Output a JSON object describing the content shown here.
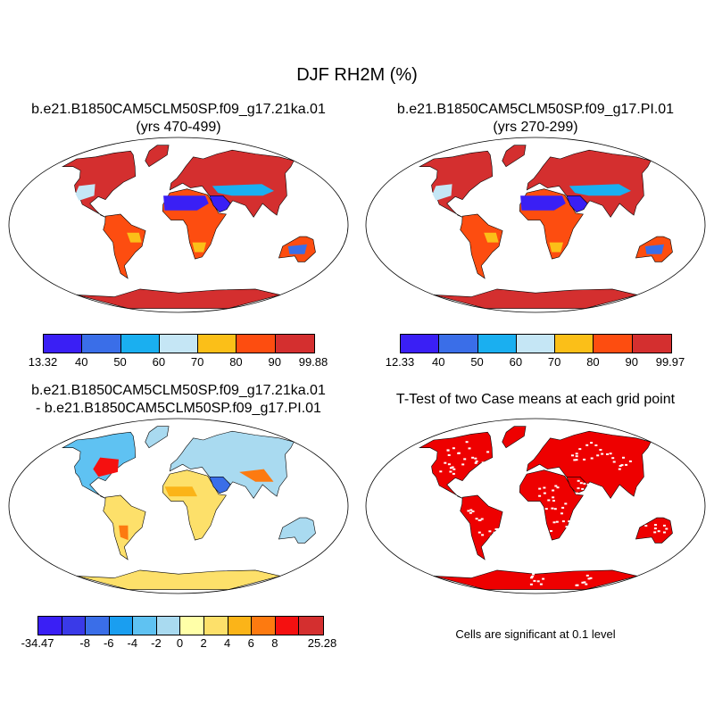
{
  "title": "DJF RH2M (%)",
  "panels": [
    {
      "title_line1": "b.e21.B1850CAM5CLM50SP.f09_g17.21ka.01",
      "title_line2": "(yrs 470-499)",
      "colorbar": {
        "colors": [
          "#3a1ff5",
          "#3a6ee8",
          "#1aaff0",
          "#c5e6f5",
          "#fbbf18",
          "#fd4d10",
          "#d42f2f"
        ],
        "ticks": [
          "13.32",
          "40",
          "50",
          "60",
          "70",
          "80",
          "90",
          "99.88"
        ]
      }
    },
    {
      "title_line1": "b.e21.B1850CAM5CLM50SP.f09_g17.PI.01",
      "title_line2": "(yrs 270-299)",
      "colorbar": {
        "colors": [
          "#3a1ff5",
          "#3a6ee8",
          "#1aaff0",
          "#c5e6f5",
          "#fbbf18",
          "#fd4d10",
          "#d42f2f"
        ],
        "ticks": [
          "12.33",
          "40",
          "50",
          "60",
          "70",
          "80",
          "90",
          "99.97"
        ]
      }
    },
    {
      "title_line1": "b.e21.B1850CAM5CLM50SP.f09_g17.21ka.01",
      "title_line2": "- b.e21.B1850CAM5CLM50SP.f09_g17.PI.01",
      "colorbar": {
        "colors": [
          "#3a1ff5",
          "#3a3ae8",
          "#3a6ee8",
          "#1a9ef0",
          "#5fc2f2",
          "#a9daf0",
          "#ffffa8",
          "#fde06a",
          "#fbb418",
          "#fd7a10",
          "#f51010",
          "#d42f2f"
        ],
        "ticks": [
          "-34.47",
          "-8",
          "-6",
          "-4",
          "-2",
          "0",
          "2",
          "4",
          "6",
          "8",
          "25.28"
        ]
      }
    },
    {
      "title_line1": "T-Test of two Case means at each grid point",
      "note": "Cells are significant at 0.1 level",
      "color": "#ee0000"
    }
  ]
}
